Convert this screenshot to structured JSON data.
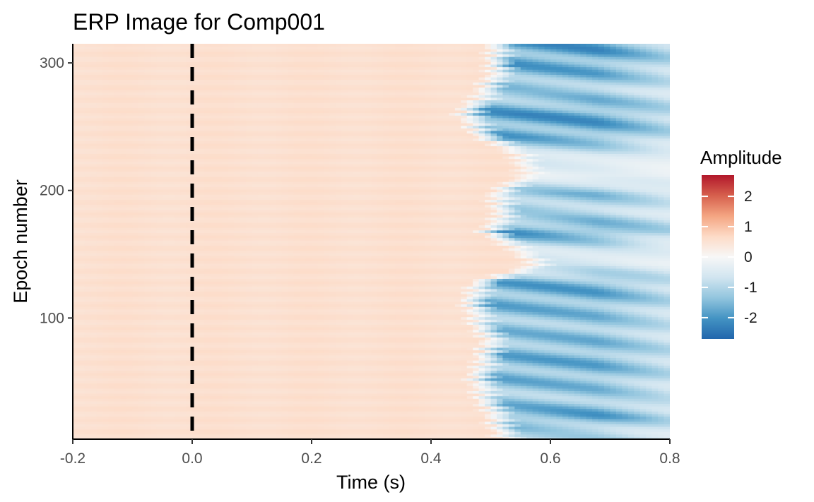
{
  "chart_data": {
    "type": "heatmap",
    "title": "ERP Image for Comp001",
    "xlabel": "Time (s)",
    "ylabel": "Epoch number",
    "xlim": [
      -0.2,
      0.8
    ],
    "ylim": [
      5,
      315
    ],
    "x_ticks": [
      -0.2,
      0.0,
      0.2,
      0.4,
      0.6,
      0.8
    ],
    "x_tick_labels": [
      "-0.2",
      "0.0",
      "0.2",
      "0.4",
      "0.6",
      "0.8"
    ],
    "y_ticks": [
      100,
      200,
      300
    ],
    "y_tick_labels": [
      "100",
      "200",
      "300"
    ],
    "stimulus_onset": 0.0,
    "grid": false,
    "legend": {
      "title": "Amplitude",
      "placement": "right",
      "range": [
        -2.7,
        2.7
      ],
      "ticks": [
        2,
        1,
        0,
        -1,
        -2
      ],
      "tick_labels": [
        "2",
        "1",
        "0",
        "-1",
        "-2"
      ],
      "colors": [
        "#2166ac",
        "#4393c3",
        "#92c5de",
        "#d1e5f0",
        "#f7f7f7",
        "#fddbc7",
        "#f4a582",
        "#d6604d",
        "#b2182b"
      ]
    },
    "epoch_bands": [
      {
        "epochs": [
          5,
          15
        ],
        "onset": 0.5,
        "amplitude": -1.3
      },
      {
        "epochs": [
          15,
          30
        ],
        "onset": 0.49,
        "amplitude": -2.2
      },
      {
        "epochs": [
          30,
          45
        ],
        "onset": 0.47,
        "amplitude": -1.6
      },
      {
        "epochs": [
          45,
          60
        ],
        "onset": 0.46,
        "amplitude": -1.9
      },
      {
        "epochs": [
          60,
          75
        ],
        "onset": 0.47,
        "amplitude": -2.0
      },
      {
        "epochs": [
          75,
          90
        ],
        "onset": 0.48,
        "amplitude": -1.8
      },
      {
        "epochs": [
          90,
          105
        ],
        "onset": 0.46,
        "amplitude": -1.7
      },
      {
        "epochs": [
          105,
          120
        ],
        "onset": 0.45,
        "amplitude": -2.0
      },
      {
        "epochs": [
          120,
          135
        ],
        "onset": 0.46,
        "amplitude": -2.1
      },
      {
        "epochs": [
          135,
          150
        ],
        "onset": 0.56,
        "amplitude": -0.7
      },
      {
        "epochs": [
          150,
          160
        ],
        "onset": 0.52,
        "amplitude": -0.9
      },
      {
        "epochs": [
          160,
          175
        ],
        "onset": 0.48,
        "amplitude": -2.3
      },
      {
        "epochs": [
          175,
          190
        ],
        "onset": 0.5,
        "amplitude": -1.3
      },
      {
        "epochs": [
          190,
          205
        ],
        "onset": 0.49,
        "amplitude": -1.7
      },
      {
        "epochs": [
          205,
          220
        ],
        "onset": 0.54,
        "amplitude": -0.4
      },
      {
        "epochs": [
          220,
          235
        ],
        "onset": 0.53,
        "amplitude": -0.8
      },
      {
        "epochs": [
          235,
          250
        ],
        "onset": 0.47,
        "amplitude": -2.1
      },
      {
        "epochs": [
          250,
          270
        ],
        "onset": 0.44,
        "amplitude": -2.3
      },
      {
        "epochs": [
          270,
          285
        ],
        "onset": 0.47,
        "amplitude": -1.5
      },
      {
        "epochs": [
          285,
          300
        ],
        "onset": 0.49,
        "amplitude": -2.0
      },
      {
        "epochs": [
          300,
          315
        ],
        "onset": 0.49,
        "amplitude": -2.3
      }
    ]
  }
}
